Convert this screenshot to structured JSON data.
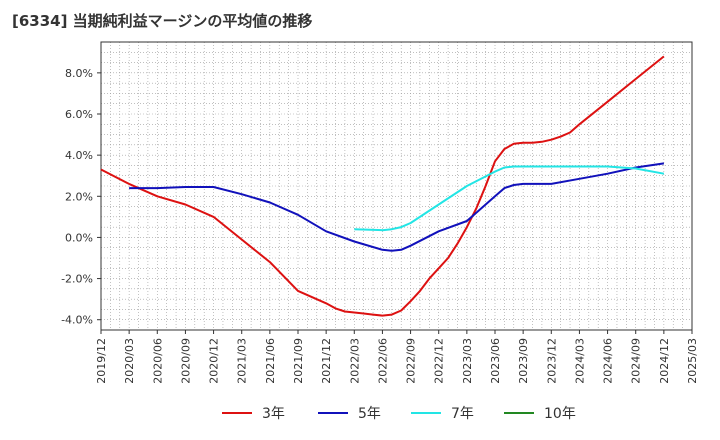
{
  "chart_data": {
    "type": "line",
    "title": "[6334]  当期純利益マージンの平均値の推移",
    "xlabel": "",
    "ylabel": "",
    "ylim": [
      -4.5,
      9.5
    ],
    "y_ticks": [
      -4.0,
      -2.0,
      0.0,
      2.0,
      4.0,
      6.0,
      8.0
    ],
    "y_tick_labels": [
      "-4.0%",
      "-2.0%",
      "0.0%",
      "2.0%",
      "4.0%",
      "6.0%",
      "8.0%"
    ],
    "x_ticks": [
      "2019/12",
      "2020/03",
      "2020/06",
      "2020/09",
      "2020/12",
      "2021/03",
      "2021/06",
      "2021/09",
      "2021/12",
      "2022/03",
      "2022/06",
      "2022/09",
      "2022/12",
      "2023/03",
      "2023/06",
      "2023/09",
      "2023/12",
      "2024/03",
      "2024/06",
      "2024/09",
      "2024/12",
      "2025/03"
    ],
    "grid": true,
    "legend_position": "bottom",
    "series": [
      {
        "name": "3年",
        "color": "#dd1111",
        "x": [
          "2019/12",
          "2020/03",
          "2020/06",
          "2020/09",
          "2020/12",
          "2021/03",
          "2021/06",
          "2021/09",
          "2021/12",
          "2022/01",
          "2022/02",
          "2022/03",
          "2022/04",
          "2022/05",
          "2022/06",
          "2022/07",
          "2022/08",
          "2022/09",
          "2022/10",
          "2022/11",
          "2022/12",
          "2023/01",
          "2023/02",
          "2023/03",
          "2023/04",
          "2023/05",
          "2023/06",
          "2023/07",
          "2023/08",
          "2023/09",
          "2023/10",
          "2023/11",
          "2023/12",
          "2024/01",
          "2024/02",
          "2024/03",
          "2024/06",
          "2024/09",
          "2024/12"
        ],
        "values": [
          3.3,
          2.6,
          2.0,
          1.6,
          1.0,
          -0.1,
          -1.2,
          -2.6,
          -3.2,
          -3.45,
          -3.6,
          -3.65,
          -3.7,
          -3.75,
          -3.8,
          -3.75,
          -3.55,
          -3.1,
          -2.6,
          -2.0,
          -1.5,
          -1.0,
          -0.3,
          0.5,
          1.4,
          2.5,
          3.7,
          4.3,
          4.55,
          4.6,
          4.6,
          4.65,
          4.75,
          4.9,
          5.1,
          5.5,
          6.6,
          7.7,
          8.8
        ]
      },
      {
        "name": "5年",
        "color": "#1111bb",
        "x": [
          "2020/03",
          "2020/06",
          "2020/09",
          "2020/12",
          "2021/03",
          "2021/06",
          "2021/09",
          "2021/12",
          "2022/03",
          "2022/06",
          "2022/07",
          "2022/08",
          "2022/09",
          "2022/12",
          "2023/03",
          "2023/06",
          "2023/07",
          "2023/08",
          "2023/09",
          "2023/12",
          "2024/03",
          "2024/06",
          "2024/09",
          "2024/12"
        ],
        "values": [
          2.4,
          2.4,
          2.45,
          2.45,
          2.1,
          1.7,
          1.1,
          0.3,
          -0.2,
          -0.6,
          -0.65,
          -0.6,
          -0.4,
          0.3,
          0.8,
          2.0,
          2.4,
          2.55,
          2.6,
          2.6,
          2.85,
          3.1,
          3.4,
          3.6
        ]
      },
      {
        "name": "7年",
        "color": "#22e5e5",
        "x": [
          "2022/03",
          "2022/06",
          "2022/07",
          "2022/08",
          "2022/09",
          "2022/12",
          "2023/03",
          "2023/06",
          "2023/07",
          "2023/08",
          "2023/09",
          "2023/12",
          "2024/03",
          "2024/06",
          "2024/09",
          "2024/12"
        ],
        "values": [
          0.4,
          0.35,
          0.4,
          0.5,
          0.7,
          1.6,
          2.5,
          3.2,
          3.4,
          3.45,
          3.45,
          3.45,
          3.45,
          3.45,
          3.35,
          3.1
        ]
      },
      {
        "name": "10年",
        "color": "#228822",
        "x": [],
        "values": []
      }
    ]
  }
}
